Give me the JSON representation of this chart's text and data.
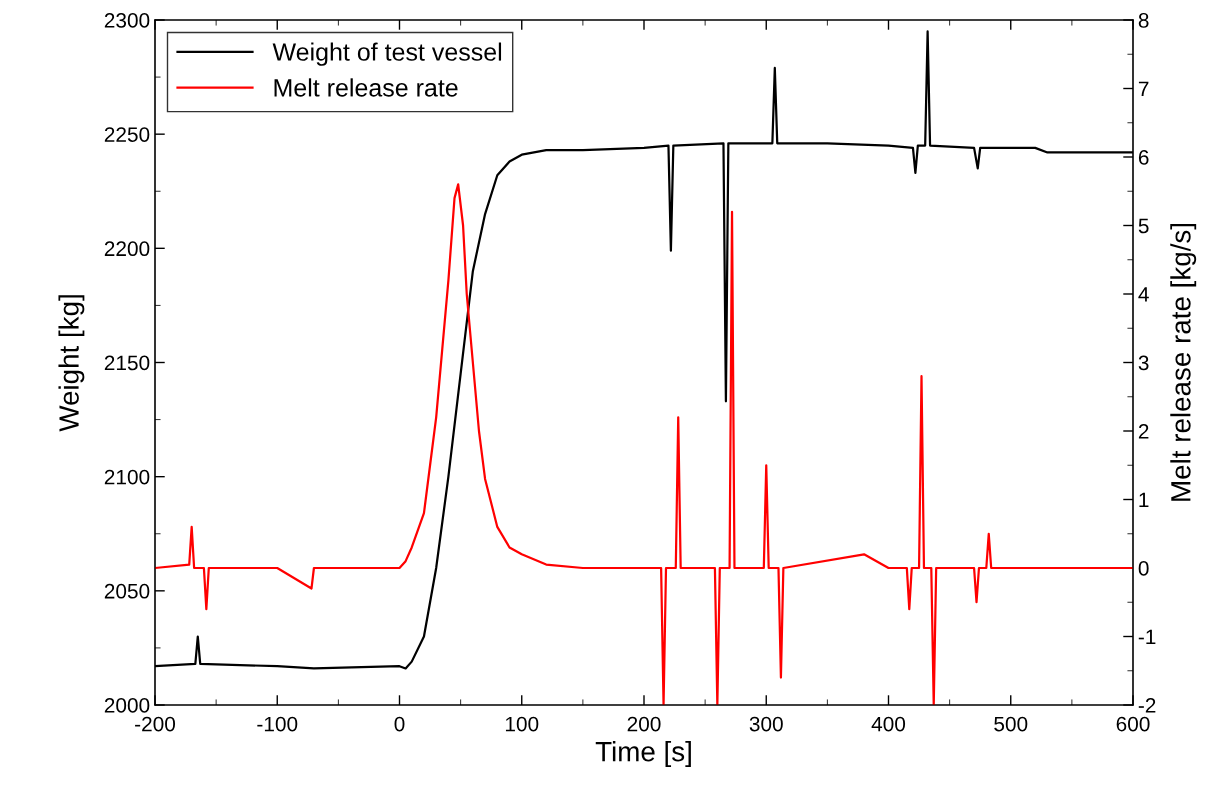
{
  "chart_data": {
    "type": "line",
    "xlabel": "Time [s]",
    "ylabel": "Weight [kg]",
    "y2label": "Melt release rate [kg/s]",
    "xlim": [
      -200,
      600
    ],
    "xticks": [
      -200,
      -100,
      0,
      100,
      200,
      300,
      400,
      500,
      600
    ],
    "ylim": [
      2000,
      2300
    ],
    "yticks": [
      2000,
      2050,
      2100,
      2150,
      2200,
      2250,
      2300
    ],
    "y2lim": [
      -2,
      8
    ],
    "y2ticks": [
      -2,
      -1,
      0,
      1,
      2,
      3,
      4,
      5,
      6,
      7,
      8
    ],
    "grid": false,
    "legend": "top left",
    "marker": "none",
    "line_style": "solid",
    "series": [
      {
        "name": "Weight of test vessel",
        "color": "#000000",
        "x": [
          -200,
          -167,
          -165,
          -163,
          -100,
          -70,
          0,
          5,
          10,
          20,
          30,
          40,
          50,
          60,
          70,
          80,
          90,
          100,
          120,
          150,
          200,
          220,
          222,
          224,
          265,
          267,
          269,
          305,
          307,
          309,
          350,
          400,
          420,
          422,
          424,
          430,
          432,
          434,
          470,
          473,
          475,
          520,
          530,
          600
        ],
        "values": [
          2017,
          2018,
          2030,
          2018,
          2017,
          2016,
          2017,
          2016,
          2019,
          2030,
          2060,
          2100,
          2145,
          2190,
          2215,
          2232,
          2238,
          2241,
          2243,
          2243,
          2244,
          2245,
          2199,
          2245,
          2246,
          2133,
          2246,
          2246,
          2279,
          2246,
          2246,
          2245,
          2244,
          2233,
          2245,
          2245,
          2295,
          2245,
          2244,
          2235,
          2244,
          2244,
          2242,
          2242
        ]
      },
      {
        "name": "Melt release rate",
        "color": "#ff0000",
        "axis": "y2",
        "x": [
          -200,
          -172,
          -170,
          -168,
          -160,
          -158,
          -156,
          -100,
          -72,
          -70,
          0,
          5,
          10,
          20,
          25,
          30,
          35,
          40,
          45,
          48,
          52,
          55,
          60,
          65,
          70,
          80,
          90,
          100,
          120,
          150,
          200,
          214,
          216,
          218,
          226,
          228,
          230,
          258,
          260,
          262,
          270,
          272,
          274,
          298,
          300,
          302,
          310,
          312,
          314,
          380,
          400,
          415,
          417,
          419,
          425,
          427,
          429,
          435,
          437,
          439,
          470,
          472,
          474,
          480,
          482,
          484,
          600
        ],
        "values": [
          0,
          0.05,
          0.6,
          0,
          0,
          -0.6,
          0,
          0,
          -0.3,
          0,
          0,
          0.1,
          0.3,
          0.8,
          1.5,
          2.2,
          3.2,
          4.2,
          5.4,
          5.6,
          5.0,
          4.0,
          3.0,
          2.0,
          1.3,
          0.6,
          0.3,
          0.2,
          0.05,
          0,
          0,
          0,
          -2,
          0,
          0,
          2.2,
          0,
          0,
          -2,
          0,
          0,
          5.2,
          0,
          0,
          1.5,
          0,
          0,
          -1.6,
          0,
          0.2,
          0,
          0,
          -0.6,
          0,
          0,
          2.8,
          0,
          0,
          -2,
          0,
          0,
          -0.5,
          0,
          0,
          0.5,
          0,
          0
        ]
      }
    ]
  }
}
